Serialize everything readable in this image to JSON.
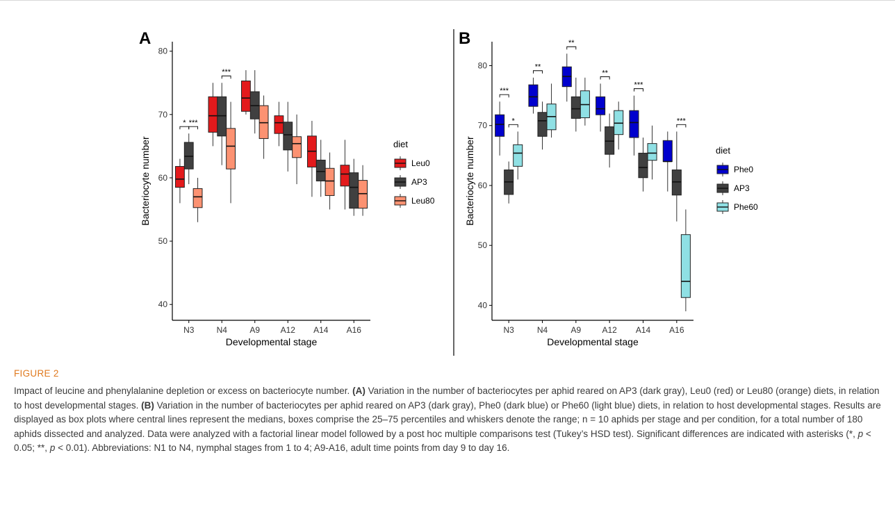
{
  "figure": {
    "label": "FIGURE 2",
    "caption": {
      "title": "Impact of leucine and phenylalanine depletion or excess on bacteriocyte number.",
      "a_ref": "(A)",
      "a_text": "Variation in the number of bacteriocytes per aphid reared on AP3 (dark gray), Leu0 (red) or Leu80 (orange) diets, in relation to host developmental stages.",
      "b_ref": "(B)",
      "b_text": "Variation in the number of bacteriocytes per aphid reared on AP3 (dark gray), Phe0 (dark blue) or Phe60 (light blue) diets, in relation to host developmental stages. Results are displayed as box plots where central lines represent the medians, boxes comprise the 25–75 percentiles and whiskers denote the range; n = 10 aphids per stage and per condition, for a total number of 180 aphids dissected and analyzed. Data were analyzed with a factorial linear model followed by a post hoc multiple comparisons test (Tukey’s HSD test). Significant differences are indicated with asterisks (*,",
      "p1": "p",
      "lt1": "< 0.05; **,",
      "p2": "p",
      "lt2": "< 0.01). Abbreviations: N1 to N4, nymphal stages from 1 to 4; A9-A16, adult time points from day 9 to day 16."
    }
  },
  "chart_data": [
    {
      "panel": "A",
      "type": "box",
      "xlabel": "Developmental stage",
      "ylabel": "Bacteriocyte number",
      "categories": [
        "N3",
        "N4",
        "A9",
        "A12",
        "A14",
        "A16"
      ],
      "yticks": [
        40,
        50,
        60,
        70,
        80
      ],
      "ylim": [
        37.5,
        81.5
      ],
      "legend_title": "diet",
      "legend_position": "right",
      "grid": false,
      "series": [
        {
          "name": "Leu0",
          "color": "#e31a1c",
          "boxes": [
            {
              "min": 56,
              "q1": 58.5,
              "median": 59.8,
              "q3": 61.8,
              "max": 63
            },
            {
              "min": 65,
              "q1": 67.2,
              "median": 69.8,
              "q3": 72.8,
              "max": 75
            },
            {
              "min": 70,
              "q1": 70.5,
              "median": 72.6,
              "q3": 75.3,
              "max": 77
            },
            {
              "min": 65,
              "q1": 67,
              "median": 68.7,
              "q3": 69.8,
              "max": 72
            },
            {
              "min": 57,
              "q1": 61.7,
              "median": 64.2,
              "q3": 66.6,
              "max": 69
            },
            {
              "min": 55,
              "q1": 58.7,
              "median": 60.6,
              "q3": 62,
              "max": 66
            }
          ]
        },
        {
          "name": "AP3",
          "color": "#404040",
          "boxes": [
            {
              "min": 59,
              "q1": 61.4,
              "median": 63.4,
              "q3": 65.6,
              "max": 67
            },
            {
              "min": 62,
              "q1": 66.6,
              "median": 69.8,
              "q3": 72.8,
              "max": 75
            },
            {
              "min": 67,
              "q1": 69.3,
              "median": 71.4,
              "q3": 73.6,
              "max": 77
            },
            {
              "min": 61,
              "q1": 64.4,
              "median": 66.8,
              "q3": 68.8,
              "max": 72
            },
            {
              "min": 57,
              "q1": 59.5,
              "median": 61,
              "q3": 62.8,
              "max": 66
            },
            {
              "min": 54,
              "q1": 55.2,
              "median": 58.5,
              "q3": 60.8,
              "max": 63
            }
          ]
        },
        {
          "name": "Leu80",
          "color": "#fc9272",
          "boxes": [
            {
              "min": 53,
              "q1": 55.3,
              "median": 57,
              "q3": 58.3,
              "max": 60
            },
            {
              "min": 56,
              "q1": 61.4,
              "median": 65,
              "q3": 67.8,
              "max": 72
            },
            {
              "min": 63,
              "q1": 66.2,
              "median": 68.7,
              "q3": 71.4,
              "max": 73
            },
            {
              "min": 59,
              "q1": 63.2,
              "median": 65.4,
              "q3": 66.5,
              "max": 70
            },
            {
              "min": 55,
              "q1": 57.2,
              "median": 59.5,
              "q3": 61.5,
              "max": 64
            },
            {
              "min": 54,
              "q1": 55.2,
              "median": 57.5,
              "q3": 59.6,
              "max": 62
            }
          ]
        }
      ],
      "significance": [
        {
          "category": "N3",
          "pair": [
            0,
            1
          ],
          "label": "*"
        },
        {
          "category": "N3",
          "pair": [
            1,
            2
          ],
          "label": "***"
        },
        {
          "category": "N4",
          "pair": [
            1,
            2
          ],
          "label": "***"
        }
      ]
    },
    {
      "panel": "B",
      "type": "box",
      "xlabel": "Developmental stage",
      "ylabel": "Bacteriocyte number",
      "categories": [
        "N3",
        "N4",
        "A9",
        "A12",
        "A14",
        "A16"
      ],
      "yticks": [
        40,
        50,
        60,
        70,
        80
      ],
      "ylim": [
        37.5,
        84
      ],
      "legend_title": "diet",
      "legend_position": "right",
      "grid": false,
      "series": [
        {
          "name": "Phe0",
          "color": "#0000cd",
          "boxes": [
            {
              "min": 65,
              "q1": 68.2,
              "median": 70.2,
              "q3": 71.8,
              "max": 74
            },
            {
              "min": 72,
              "q1": 73.2,
              "median": 74.8,
              "q3": 76.8,
              "max": 78
            },
            {
              "min": 74,
              "q1": 76.5,
              "median": 78.2,
              "q3": 79.8,
              "max": 82
            },
            {
              "min": 69,
              "q1": 71.8,
              "median": 72.8,
              "q3": 74.8,
              "max": 77
            },
            {
              "min": 65,
              "q1": 68,
              "median": 70.5,
              "q3": 72.5,
              "max": 75
            },
            {
              "min": 59,
              "q1": 64,
              "median": 64,
              "q3": 67.5,
              "max": 69
            }
          ]
        },
        {
          "name": "AP3",
          "color": "#404040",
          "boxes": [
            {
              "min": 57,
              "q1": 58.5,
              "median": 60.6,
              "q3": 62.6,
              "max": 64
            },
            {
              "min": 66,
              "q1": 68.2,
              "median": 70.8,
              "q3": 72.2,
              "max": 74
            },
            {
              "min": 69,
              "q1": 71.2,
              "median": 72.8,
              "q3": 74.8,
              "max": 78
            },
            {
              "min": 63,
              "q1": 65.2,
              "median": 67.4,
              "q3": 69.8,
              "max": 72
            },
            {
              "min": 59,
              "q1": 61.3,
              "median": 63,
              "q3": 65.4,
              "max": 68
            },
            {
              "min": 54,
              "q1": 58.4,
              "median": 60.6,
              "q3": 62.6,
              "max": 69
            }
          ]
        },
        {
          "name": "Phe60",
          "color": "#8fe0e4",
          "boxes": [
            {
              "min": 61,
              "q1": 63.2,
              "median": 65.4,
              "q3": 66.8,
              "max": 69
            },
            {
              "min": 68,
              "q1": 69.3,
              "median": 71.5,
              "q3": 73.6,
              "max": 77
            },
            {
              "min": 70,
              "q1": 71.3,
              "median": 73.5,
              "q3": 75.8,
              "max": 78
            },
            {
              "min": 66,
              "q1": 68.5,
              "median": 70.4,
              "q3": 72.5,
              "max": 74
            },
            {
              "min": 61,
              "q1": 64.2,
              "median": 65.4,
              "q3": 67,
              "max": 70
            },
            {
              "min": 39,
              "q1": 41.3,
              "median": 44,
              "q3": 51.8,
              "max": 56
            }
          ]
        }
      ],
      "significance": [
        {
          "category": "N3",
          "pair": [
            0,
            1
          ],
          "label": "***"
        },
        {
          "category": "N3",
          "pair": [
            1,
            2
          ],
          "label": "*"
        },
        {
          "category": "N4",
          "pair": [
            0,
            1
          ],
          "label": "**"
        },
        {
          "category": "A9",
          "pair": [
            0,
            1
          ],
          "label": "**"
        },
        {
          "category": "A12",
          "pair": [
            0,
            1
          ],
          "label": "**"
        },
        {
          "category": "A14",
          "pair": [
            0,
            1
          ],
          "label": "***"
        },
        {
          "category": "A16",
          "pair": [
            1,
            2
          ],
          "label": "***"
        }
      ]
    }
  ]
}
